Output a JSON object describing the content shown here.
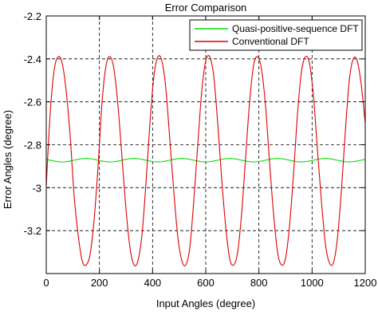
{
  "chart_data": {
    "type": "line",
    "title": "Error Comparison",
    "xlabel": "Input Angles (degree)",
    "ylabel": "Error Angles (degree)",
    "xlim": [
      0,
      1200
    ],
    "ylim": [
      -3.4,
      -2.2
    ],
    "xticks": [
      0,
      200,
      400,
      600,
      800,
      1000,
      1200
    ],
    "xtick_labels": [
      "0",
      "200",
      "400",
      "600",
      "800",
      "1000",
      "1200"
    ],
    "yticks": [
      -2.2,
      -2.4,
      -2.6,
      -2.8,
      -3,
      -3.2
    ],
    "ytick_labels": [
      "-2.2",
      "-2.4",
      "-2.6",
      "-2.8",
      "-3",
      "-3.2"
    ],
    "grid": true,
    "legend_position": "top-right",
    "series": [
      {
        "name": "Quasi-positive-sequence DFT",
        "color": "#00e000",
        "x": [
          0,
          15,
          30,
          45,
          60,
          75,
          90,
          105,
          120,
          135,
          150,
          165,
          180,
          195,
          210,
          225,
          240,
          255,
          270,
          285,
          300,
          315,
          330,
          345,
          360,
          375,
          390,
          405,
          420,
          435,
          450,
          465,
          480,
          495,
          510,
          525,
          540,
          555,
          570,
          585,
          600,
          615,
          630,
          645,
          660,
          675,
          690,
          705,
          720,
          735,
          750,
          765,
          780,
          795,
          810,
          825,
          840,
          855,
          870,
          885,
          900,
          915,
          930,
          945,
          960,
          975,
          990,
          1005,
          1020,
          1035,
          1050,
          1065,
          1080,
          1095,
          1110,
          1125,
          1140,
          1155,
          1170,
          1185,
          1200
        ],
        "y": [
          -2.87,
          -2.872,
          -2.876,
          -2.879,
          -2.88,
          -2.879,
          -2.876,
          -2.872,
          -2.868,
          -2.865,
          -2.864,
          -2.865,
          -2.868,
          -2.872,
          -2.876,
          -2.879,
          -2.88,
          -2.879,
          -2.876,
          -2.872,
          -2.868,
          -2.865,
          -2.864,
          -2.865,
          -2.868,
          -2.872,
          -2.876,
          -2.879,
          -2.88,
          -2.879,
          -2.876,
          -2.872,
          -2.868,
          -2.865,
          -2.864,
          -2.865,
          -2.868,
          -2.872,
          -2.876,
          -2.879,
          -2.88,
          -2.879,
          -2.876,
          -2.872,
          -2.868,
          -2.865,
          -2.864,
          -2.865,
          -2.868,
          -2.872,
          -2.876,
          -2.879,
          -2.88,
          -2.879,
          -2.876,
          -2.872,
          -2.868,
          -2.865,
          -2.864,
          -2.865,
          -2.868,
          -2.872,
          -2.876,
          -2.879,
          -2.88,
          -2.879,
          -2.876,
          -2.872,
          -2.868,
          -2.865,
          -2.864,
          -2.865,
          -2.868,
          -2.872,
          -2.876,
          -2.879,
          -2.88,
          -2.879,
          -2.876,
          -2.872,
          -2.868
        ]
      },
      {
        "name": "Conventional DFT",
        "color": "#e00000",
        "x": [
          0,
          15,
          30,
          45,
          60,
          75,
          90,
          105,
          120,
          135,
          150,
          165,
          180,
          195,
          210,
          225,
          240,
          255,
          270,
          285,
          300,
          315,
          330,
          345,
          360,
          375,
          390,
          405,
          420,
          435,
          450,
          465,
          480,
          495,
          510,
          525,
          540,
          555,
          570,
          585,
          600,
          615,
          630,
          645,
          660,
          675,
          690,
          705,
          720,
          735,
          750,
          765,
          780,
          795,
          810,
          825,
          840,
          855,
          870,
          885,
          900,
          915,
          930,
          945,
          960,
          975,
          990,
          1005,
          1020,
          1035,
          1050,
          1065,
          1080,
          1095,
          1110,
          1125,
          1140,
          1155,
          1170,
          1185,
          1200
        ],
        "y": [
          -2.99,
          -2.65,
          -2.45,
          -2.39,
          -2.42,
          -2.55,
          -2.76,
          -3.04,
          -3.22,
          -3.34,
          -3.36,
          -3.31,
          -3.15,
          -2.9,
          -2.6,
          -2.43,
          -2.39,
          -2.45,
          -2.62,
          -2.86,
          -3.1,
          -3.28,
          -3.36,
          -3.34,
          -3.22,
          -2.98,
          -2.7,
          -2.48,
          -2.39,
          -2.41,
          -2.54,
          -2.78,
          -3.02,
          -3.23,
          -3.34,
          -3.36,
          -3.28,
          -3.06,
          -2.8,
          -2.55,
          -2.41,
          -2.39,
          -2.48,
          -2.7,
          -2.96,
          -3.18,
          -3.33,
          -3.36,
          -3.3,
          -3.12,
          -2.86,
          -2.6,
          -2.43,
          -2.39,
          -2.45,
          -2.62,
          -2.88,
          -3.12,
          -3.3,
          -3.36,
          -3.33,
          -3.18,
          -2.94,
          -2.66,
          -2.46,
          -2.39,
          -2.42,
          -2.57,
          -2.82,
          -3.06,
          -3.26,
          -3.35,
          -3.35,
          -3.24,
          -3.02,
          -2.74,
          -2.5,
          -2.4,
          -2.41,
          -2.52,
          -2.7
        ]
      }
    ]
  }
}
